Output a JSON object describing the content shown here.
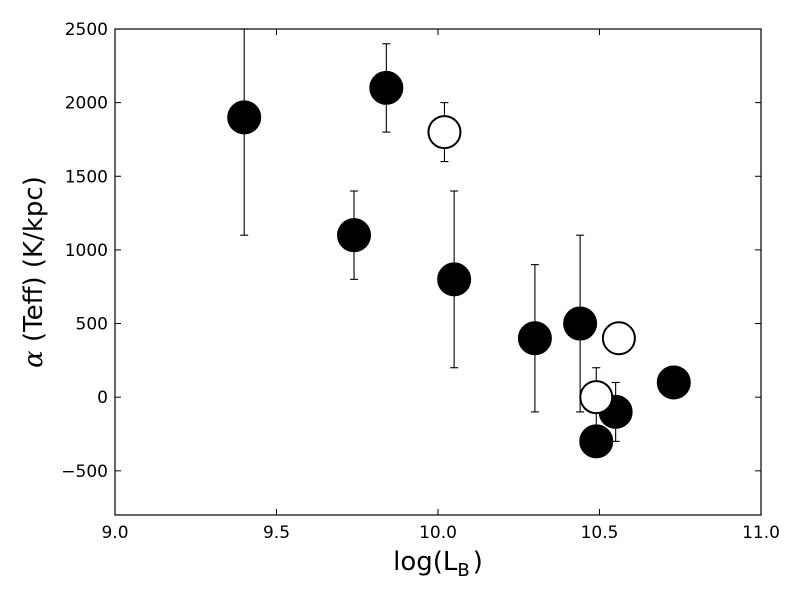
{
  "chart_data": {
    "type": "scatter",
    "title": "",
    "xlabel": "log(L_B)",
    "xlabel_main": "log(L",
    "xlabel_sub": "B",
    "xlabel_close": ")",
    "ylabel": "α (Teff) (K/kpc)",
    "ylabel_symbol": "α",
    "ylabel_rest": " (Teff) (K/kpc)",
    "xlim": [
      9.0,
      11.0
    ],
    "ylim": [
      -800,
      2500
    ],
    "xticks": [
      9.0,
      9.5,
      10.0,
      10.5,
      11.0
    ],
    "xtick_labels": [
      "9.0",
      "9.5",
      "10.0",
      "10.5",
      "11.0"
    ],
    "yticks": [
      -500,
      0,
      500,
      1000,
      1500,
      2000,
      2500
    ],
    "ytick_labels": [
      "−500",
      "0",
      "500",
      "1000",
      "1500",
      "2000",
      "2500"
    ],
    "grid": false,
    "series": [
      {
        "marker": "filled-circle",
        "color": "#000000",
        "points": [
          {
            "x": 9.4,
            "y": 1900,
            "ylo": 1100,
            "yhi": 2500
          },
          {
            "x": 9.74,
            "y": 1100,
            "ylo": 800,
            "yhi": 1400
          },
          {
            "x": 9.84,
            "y": 2100,
            "ylo": 1800,
            "yhi": 2400
          },
          {
            "x": 10.05,
            "y": 800,
            "ylo": 200,
            "yhi": 1400
          },
          {
            "x": 10.3,
            "y": 400,
            "ylo": -100,
            "yhi": 900
          },
          {
            "x": 10.44,
            "y": 500,
            "ylo": -100,
            "yhi": 1100
          },
          {
            "x": 10.49,
            "y": -300
          },
          {
            "x": 10.55,
            "y": -100,
            "ylo": -300,
            "yhi": 100
          },
          {
            "x": 10.73,
            "y": 100
          }
        ]
      },
      {
        "marker": "open-circle",
        "color": "#000000",
        "points": [
          {
            "x": 10.02,
            "y": 1800,
            "ylo": 1600,
            "yhi": 2000
          },
          {
            "x": 10.49,
            "y": 0,
            "ylo": -200,
            "yhi": 200
          },
          {
            "x": 10.56,
            "y": 400
          }
        ]
      }
    ]
  }
}
